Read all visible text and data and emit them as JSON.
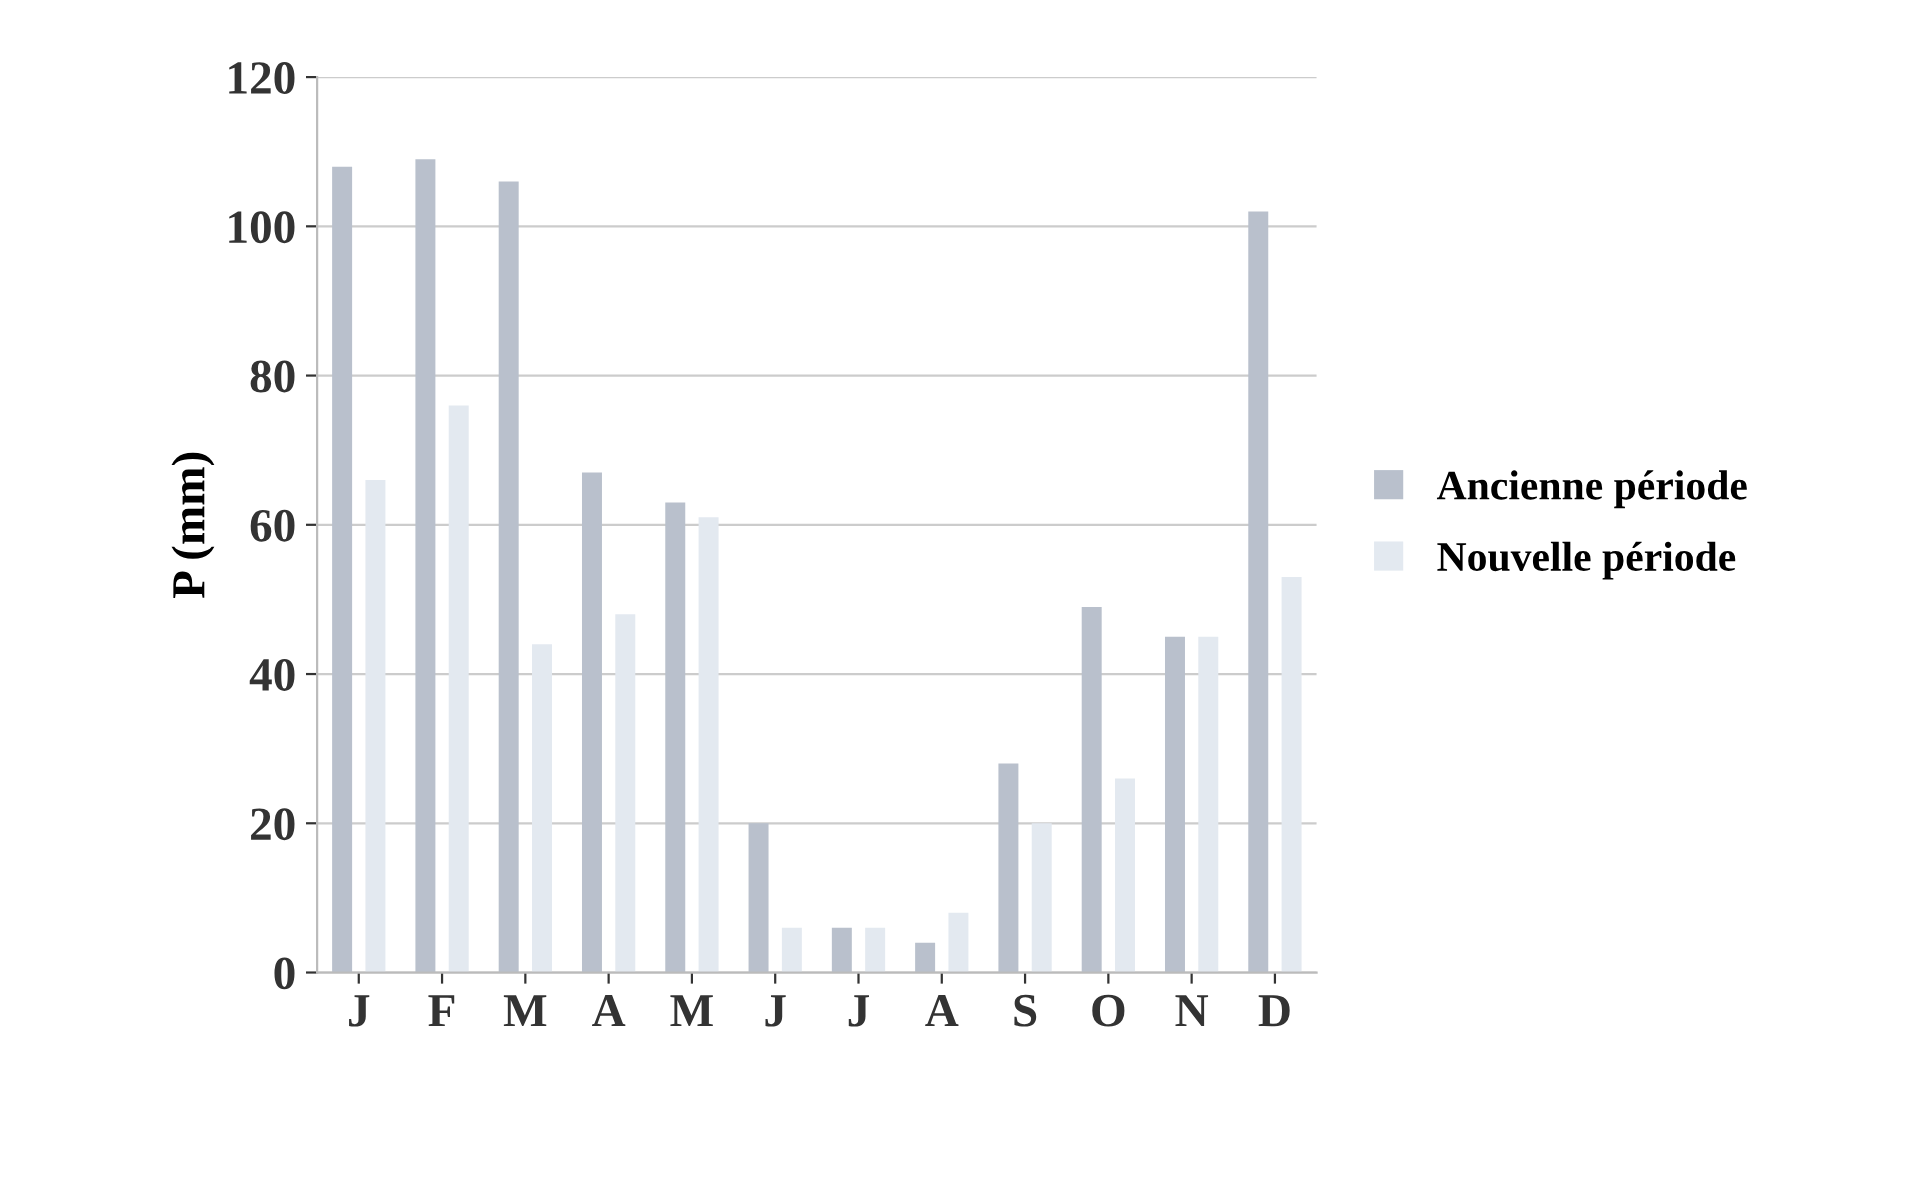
{
  "chart_data": {
    "type": "bar",
    "ylabel": "P (mm)",
    "categories": [
      "J",
      "F",
      "M",
      "A",
      "M",
      "J",
      "J",
      "A",
      "S",
      "O",
      "N",
      "D"
    ],
    "series": [
      {
        "name": "Ancienne période",
        "color": "#b9c0cc",
        "values": [
          108,
          109,
          106,
          67,
          63,
          20,
          6,
          4,
          28,
          49,
          45,
          102
        ]
      },
      {
        "name": "Nouvelle période",
        "color": "#e3e9f0",
        "values": [
          66,
          76,
          44,
          48,
          61,
          6,
          6,
          8,
          20,
          26,
          45,
          53
        ]
      }
    ],
    "ylim": [
      0,
      120
    ],
    "yticks": [
      0,
      20,
      40,
      60,
      80,
      100,
      120
    ],
    "grid": "y",
    "legend": "right"
  }
}
